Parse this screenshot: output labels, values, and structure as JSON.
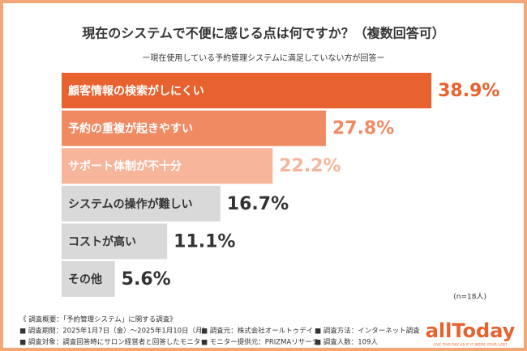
{
  "chart_data": {
    "type": "bar",
    "orientation": "horizontal",
    "title": "現在のシステムで不便に感じる点は何ですか？（複数回答可）",
    "subtitle": "ー現在使用している予約管理システムに満足していない方が回答ー",
    "categories": [
      "顧客情報の検索がしにくい",
      "予約の重複が起きやすい",
      "サポート体制が不十分",
      "システムの操作が難しい",
      "コストが高い",
      "その他"
    ],
    "values": [
      38.9,
      27.8,
      22.2,
      16.7,
      11.1,
      5.6
    ],
    "value_labels": [
      "38.9%",
      "27.8%",
      "22.2%",
      "16.7%",
      "11.1%",
      "5.6%"
    ],
    "colors": [
      "#e8622f",
      "#f08a62",
      "#f7b59b",
      "#d9d9d9",
      "#d9d9d9",
      "#d9d9d9"
    ],
    "value_label_colors": [
      "#e8622f",
      "#f08a62",
      "#f7b59b",
      "#333333",
      "#333333",
      "#333333"
    ],
    "xlim": [
      0,
      40
    ],
    "note": "(n=18人)"
  },
  "footer": {
    "heading": "《 調査概要：「予約管理システム」に関する調査》",
    "items": [
      [
        "■ 調査期間：2025年1月7日（金）～2025年1月10日（月）",
        "■ 調査元：株式会社オールトゥデイ",
        "■ 調査方法：インターネット調査"
      ],
      [
        "■ 調査対象：調査回答時にサロン経営者と回答したモニター",
        "■ モニター提供元：PRIZMAリサーチ",
        "■ 調査人数：109人"
      ]
    ]
  },
  "logo": {
    "name": "allToday",
    "tagline": "LIVE THIS DAY AS IF IT WERE YOUR LAST"
  }
}
